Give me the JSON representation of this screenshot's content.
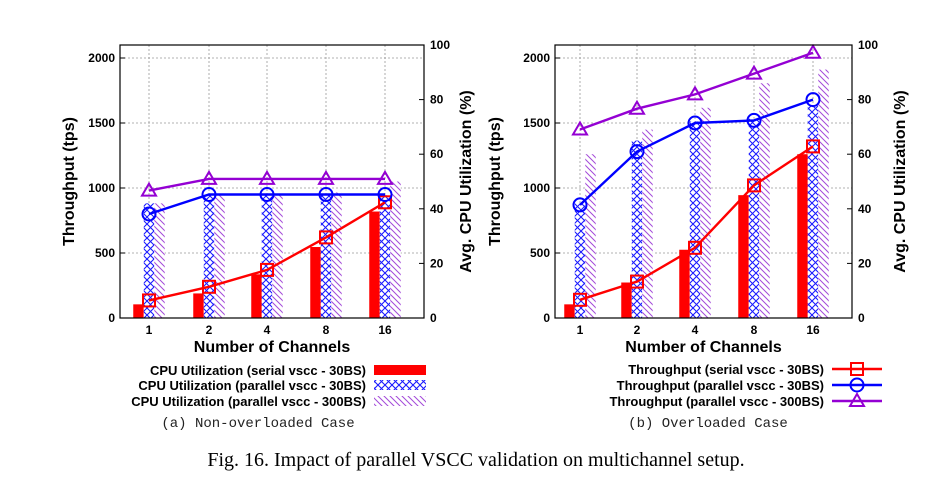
{
  "caption": "Fig. 16.  Impact of parallel VSCC validation on multichannel setup.",
  "colors": {
    "serial": "#ff0000",
    "parallel30": "#0000ff",
    "parallel300": "#9400d3"
  },
  "chart_data": [
    {
      "type": "bar",
      "subcaption": "(a) Non-overloaded Case",
      "xlabel": "Number of Channels",
      "ylabel": "Throughput (tps)",
      "y2label": "Avg. CPU Utilization (%)",
      "categories": [
        "1",
        "2",
        "4",
        "8",
        "16"
      ],
      "ylim": [
        0,
        2100
      ],
      "y_ticks": [
        "0",
        "500",
        "1000",
        "1500",
        "2000"
      ],
      "y2lim": [
        0,
        100
      ],
      "y2_ticks": [
        "0",
        "20",
        "40",
        "60",
        "80",
        "100"
      ],
      "grid": true,
      "legend_position": "below",
      "bar_series": [
        {
          "name": "CPU Utilization (serial vscc - 30BS)",
          "values": [
            5,
            9,
            16,
            26,
            39
          ]
        },
        {
          "name": "CPU Utilization (parallel vscc - 30BS)",
          "values": [
            42,
            45,
            45,
            45,
            45
          ]
        },
        {
          "name": "CPU Utilization (parallel vscc - 300BS)",
          "values": [
            42,
            45,
            45,
            46,
            50
          ]
        }
      ],
      "line_series": [
        {
          "values": [
            135,
            240,
            370,
            620,
            890
          ]
        },
        {
          "values": [
            800,
            950,
            950,
            950,
            950
          ]
        },
        {
          "values": [
            980,
            1070,
            1070,
            1070,
            1070
          ]
        }
      ]
    },
    {
      "type": "bar",
      "subcaption": "(b) Overloaded Case",
      "xlabel": "Number of Channels",
      "ylabel": "Throughput (tps)",
      "y2label": "Avg. CPU Utilization (%)",
      "categories": [
        "1",
        "2",
        "4",
        "8",
        "16"
      ],
      "ylim": [
        0,
        2100
      ],
      "y_ticks": [
        "0",
        "500",
        "1000",
        "1500",
        "2000"
      ],
      "y2lim": [
        0,
        100
      ],
      "y2_ticks": [
        "0",
        "20",
        "40",
        "60",
        "80",
        "100"
      ],
      "grid": true,
      "legend_position": "below",
      "bar_series": [
        {
          "values": [
            5,
            13,
            25,
            45,
            60
          ]
        },
        {
          "values": [
            42,
            65,
            72,
            73,
            78
          ]
        },
        {
          "values": [
            60,
            69,
            77,
            86,
            91
          ]
        }
      ],
      "line_series": [
        {
          "name": "Throughput (serial vscc - 30BS)",
          "values": [
            140,
            280,
            540,
            1020,
            1320
          ]
        },
        {
          "name": "Throughput (parallel vscc - 30BS)",
          "values": [
            870,
            1280,
            1500,
            1520,
            1680
          ]
        },
        {
          "name": "Throughput (parallel vscc - 300BS)",
          "values": [
            1450,
            1610,
            1720,
            1880,
            2040
          ]
        }
      ]
    }
  ]
}
